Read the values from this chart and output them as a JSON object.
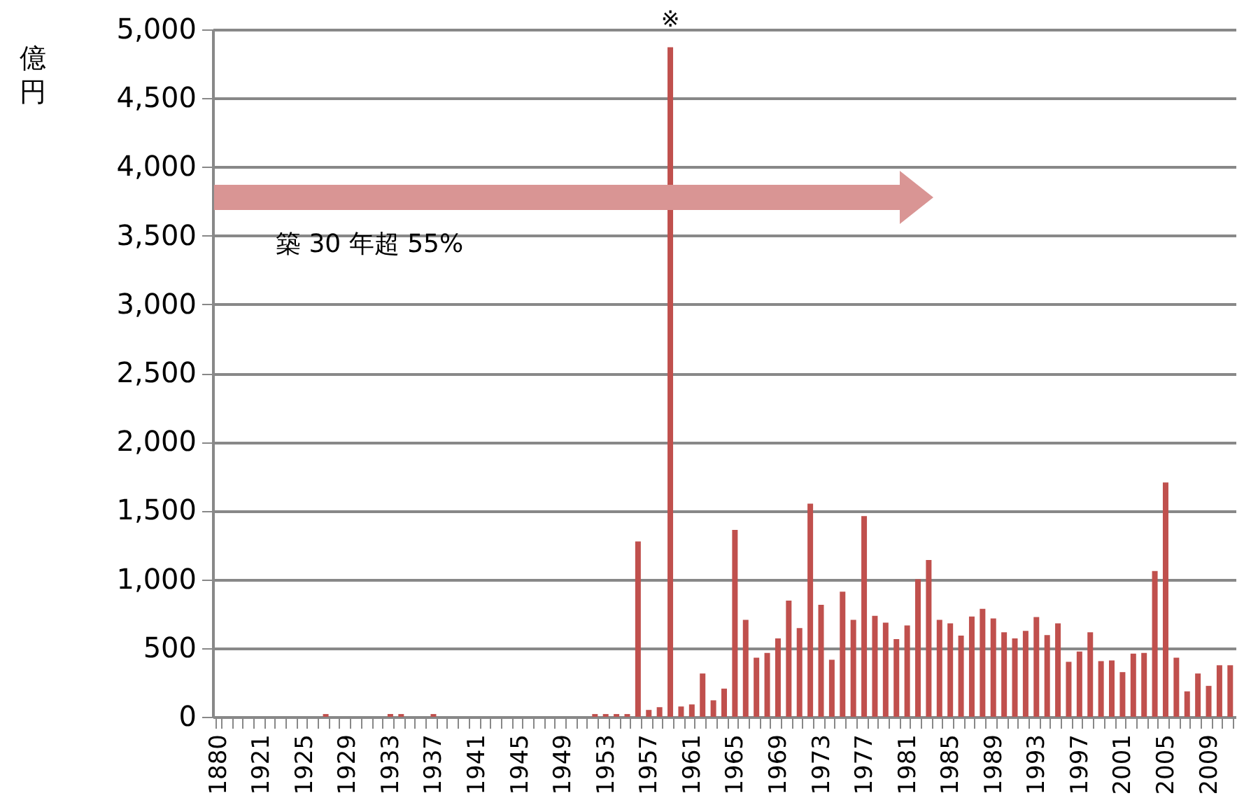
{
  "chart_data": {
    "type": "bar",
    "ylabel": "億円",
    "categories": [
      "1880",
      null,
      null,
      null,
      "1921",
      null,
      null,
      null,
      "1925",
      null,
      null,
      null,
      "1929",
      null,
      null,
      null,
      "1933",
      null,
      null,
      null,
      "1937",
      null,
      null,
      null,
      "1941",
      null,
      null,
      null,
      "1945",
      null,
      null,
      null,
      "1949",
      null,
      null,
      null,
      "1953",
      null,
      null,
      null,
      "1957",
      null,
      null,
      null,
      "1961",
      null,
      null,
      null,
      "1965",
      null,
      null,
      null,
      "1969",
      null,
      null,
      null,
      "1973",
      null,
      null,
      null,
      "1977",
      null,
      null,
      null,
      "1981",
      null,
      null,
      null,
      "1985",
      null,
      null,
      null,
      "1989",
      null,
      null,
      null,
      "1993",
      null,
      null,
      null,
      "1997",
      null,
      null,
      null,
      "2001",
      null,
      null,
      null,
      "2005",
      null,
      null,
      null,
      "2009",
      null,
      null
    ],
    "values": [
      0,
      0,
      0,
      0,
      0,
      0,
      0,
      0,
      0,
      0,
      20,
      0,
      0,
      0,
      0,
      0,
      20,
      20,
      0,
      0,
      20,
      0,
      0,
      0,
      0,
      0,
      0,
      0,
      0,
      0,
      0,
      0,
      0,
      0,
      0,
      20,
      20,
      20,
      20,
      1275,
      50,
      70,
      4870,
      75,
      90,
      315,
      120,
      205,
      1360,
      705,
      430,
      465,
      570,
      845,
      645,
      1550,
      815,
      415,
      910,
      705,
      1460,
      735,
      685,
      565,
      665,
      1000,
      1140,
      705,
      680,
      590,
      730,
      785,
      715,
      615,
      570,
      625,
      725,
      595,
      680,
      400,
      475,
      615,
      405,
      410,
      325,
      460,
      465,
      1060,
      1705,
      430,
      185,
      315,
      225,
      375,
      375
    ],
    "color": "#c0504d",
    "ylim": [
      0,
      5000
    ],
    "yticks": [
      {
        "value": 0,
        "label": "0"
      },
      {
        "value": 500,
        "label": "500"
      },
      {
        "value": 1000,
        "label": "1,000"
      },
      {
        "value": 1500,
        "label": "1,500"
      },
      {
        "value": 2000,
        "label": "2,000"
      },
      {
        "value": 2500,
        "label": "2,500"
      },
      {
        "value": 3000,
        "label": "3,000"
      },
      {
        "value": 3500,
        "label": "3,500"
      },
      {
        "value": 4000,
        "label": "4,000"
      },
      {
        "value": 4500,
        "label": "4,500"
      },
      {
        "value": 5000,
        "label": "5,000"
      }
    ],
    "grid": "y",
    "annotations": [
      "※",
      "築 30 年超 55%"
    ]
  }
}
